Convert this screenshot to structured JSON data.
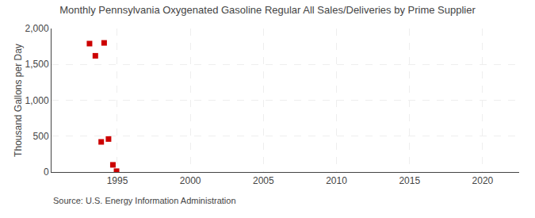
{
  "chart_data": {
    "type": "scatter",
    "title": "Monthly Pennsylvania Oxygenated Gasoline Regular All Sales/Deliveries by Prime Supplier",
    "ylabel": "Thousand Gallons per Day",
    "annotations": [
      "Source: U.S. Energy Information Administration"
    ],
    "x": [
      1993.1,
      1993.5,
      1994.1,
      1993.9,
      1994.4,
      1994.7,
      1994.95
    ],
    "values": [
      1790,
      1620,
      1800,
      420,
      460,
      100,
      12
    ],
    "color": "#cc0000",
    "marker": "square",
    "xlim": [
      1990.5,
      2022.5
    ],
    "xticks": [
      1995,
      2000,
      2005,
      2010,
      2015,
      2020
    ],
    "ylim": [
      0,
      2000
    ],
    "yticks": [
      0,
      500,
      {
        "value": 1000,
        "label": "1,000"
      },
      {
        "value": 1500,
        "label": "1,500"
      },
      {
        "value": 2000,
        "label": "2,000"
      }
    ],
    "grid": true
  }
}
